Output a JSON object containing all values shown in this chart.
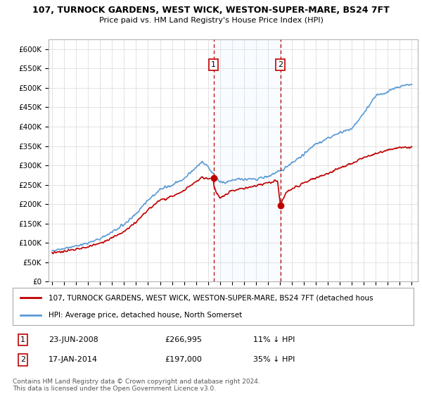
{
  "title": "107, TURNOCK GARDENS, WEST WICK, WESTON-SUPER-MARE, BS24 7FT",
  "subtitle": "Price paid vs. HM Land Registry's House Price Index (HPI)",
  "ylim": [
    0,
    625000
  ],
  "yticks": [
    0,
    50000,
    100000,
    150000,
    200000,
    250000,
    300000,
    350000,
    400000,
    450000,
    500000,
    550000,
    600000
  ],
  "ytick_labels": [
    "£0",
    "£50K",
    "£100K",
    "£150K",
    "£200K",
    "£250K",
    "£300K",
    "£350K",
    "£400K",
    "£450K",
    "£500K",
    "£550K",
    "£600K"
  ],
  "hpi_color": "#5b9bd5",
  "price_color": "#c00000",
  "sale1_price": 266995,
  "sale1_year": 2008.47,
  "sale2_price": 197000,
  "sale2_year": 2014.04,
  "legend_label1": "107, TURNOCK GARDENS, WEST WICK, WESTON-SUPER-MARE, BS24 7FT (detached hous",
  "legend_label2": "HPI: Average price, detached house, North Somerset",
  "sale1_date": "23-JUN-2008",
  "sale1_pct": "11%",
  "sale2_date": "17-JAN-2014",
  "sale2_pct": "35%",
  "footer": "Contains HM Land Registry data © Crown copyright and database right 2024.\nThis data is licensed under the Open Government Licence v3.0.",
  "shade_color": "#ddeeff",
  "background_color": "#ffffff"
}
